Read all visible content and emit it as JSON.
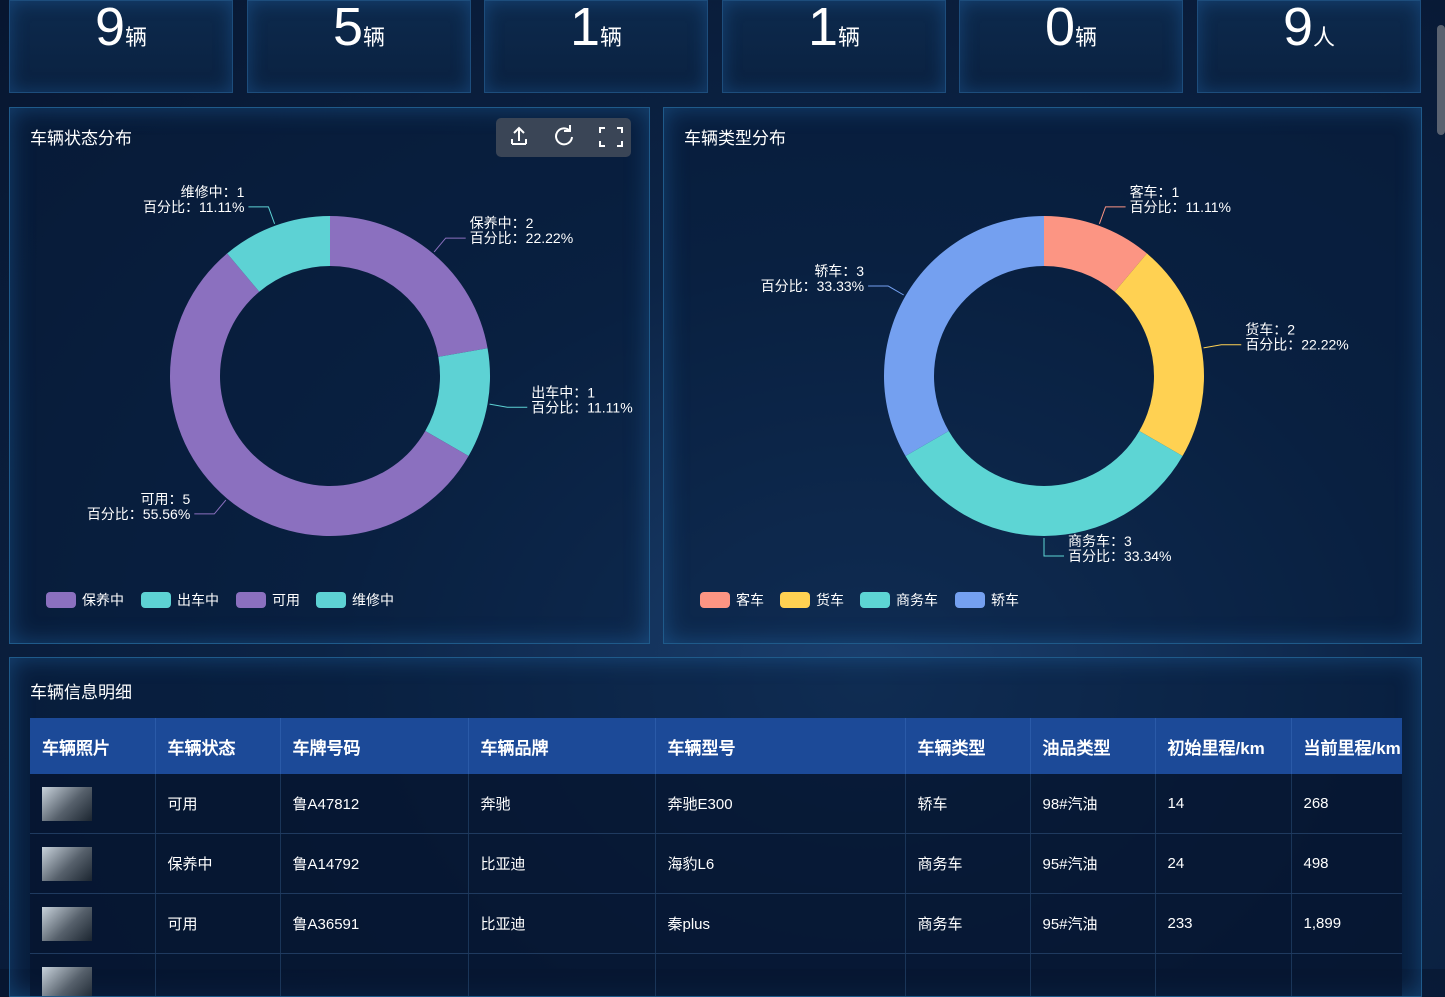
{
  "stats": [
    {
      "value": 9,
      "unit": "辆"
    },
    {
      "value": 5,
      "unit": "辆"
    },
    {
      "value": 1,
      "unit": "辆"
    },
    {
      "value": 1,
      "unit": "辆"
    },
    {
      "value": 0,
      "unit": "辆"
    },
    {
      "value": 9,
      "unit": "人"
    }
  ],
  "chart_data": [
    {
      "type": "pie",
      "title": "车辆状态分布",
      "categories": [
        "保养中",
        "出车中",
        "可用",
        "维修中"
      ],
      "values": [
        2,
        1,
        5,
        1
      ],
      "value_labels": [
        "保养中：2",
        "出车中：1",
        "可用：5",
        "维修中：1"
      ],
      "percent_labels": [
        "百分比：22.22%",
        "百分比：11.11%",
        "百分比：55.56%",
        "百分比：11.11%"
      ],
      "colors": [
        "#8b70bf",
        "#5dd2d4",
        "#8b70bf",
        "#5dd2d4"
      ],
      "legend": "bottom-left"
    },
    {
      "type": "pie",
      "title": "车辆类型分布",
      "categories": [
        "客车",
        "货车",
        "商务车",
        "轿车"
      ],
      "values": [
        1,
        2,
        3,
        3
      ],
      "value_labels": [
        "客车：1",
        "货车：2",
        "商务车：3",
        "轿车：3"
      ],
      "percent_labels": [
        "百分比：11.11%",
        "百分比：22.22%",
        "百分比：33.34%",
        "百分比：33.33%"
      ],
      "colors": [
        "#fc9583",
        "#ffd152",
        "#5dd5d4",
        "#74a0f0"
      ],
      "legend": "bottom-left"
    }
  ],
  "table": {
    "title": "车辆信息明细",
    "headers": [
      "车辆照片",
      "车辆状态",
      "车牌号码",
      "车辆品牌",
      "车辆型号",
      "车辆类型",
      "油品类型",
      "初始里程/km",
      "当前里程/km"
    ],
    "rows": [
      [
        "可用",
        "鲁A47812",
        "奔驰",
        "奔驰E300",
        "轿车",
        "98#汽油",
        "14",
        "268"
      ],
      [
        "保养中",
        "鲁A14792",
        "比亚迪",
        "海豹L6",
        "商务车",
        "95#汽油",
        "24",
        "498"
      ],
      [
        "可用",
        "鲁A36591",
        "比亚迪",
        "秦plus",
        "商务车",
        "95#汽油",
        "233",
        "1,899"
      ]
    ]
  }
}
